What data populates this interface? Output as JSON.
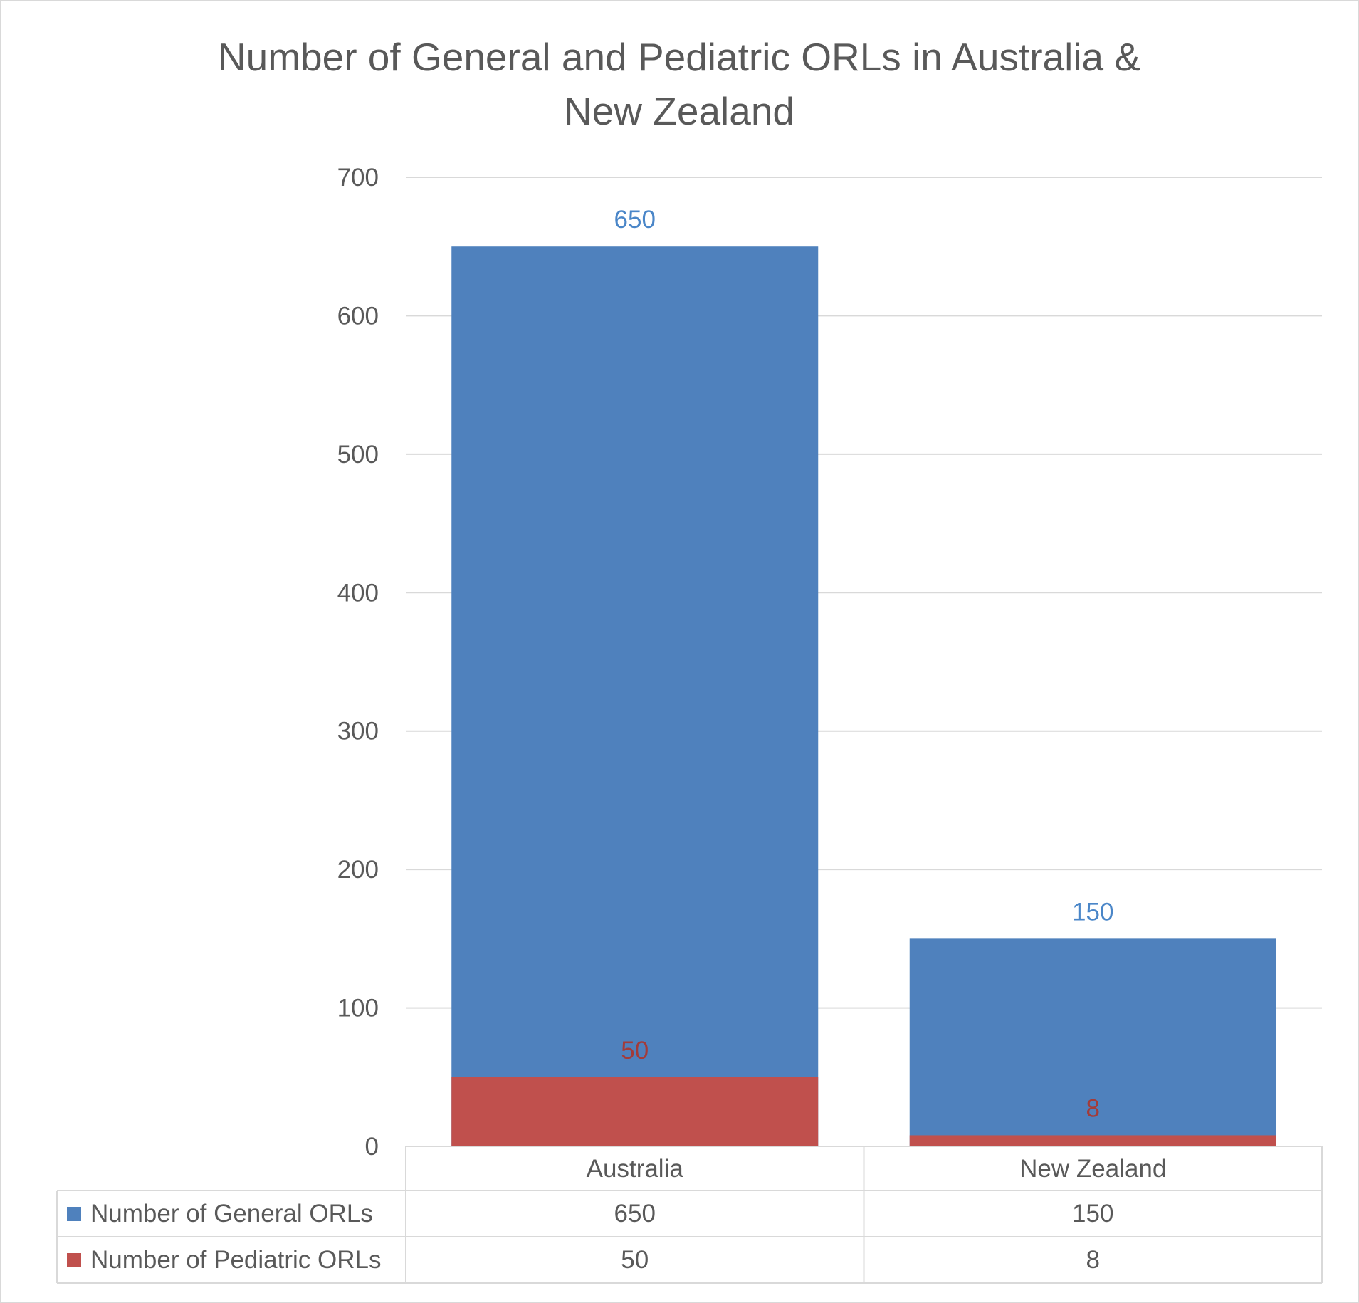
{
  "chart_data": {
    "type": "bar",
    "stacking": "overlap",
    "title": "Number of General and Pediatric ORLs in Australia & New Zealand",
    "title_lines": [
      "Number of General and Pediatric ORLs in Australia &",
      "New Zealand"
    ],
    "categories": [
      "Australia",
      "New Zealand"
    ],
    "series": [
      {
        "name": "Number of General ORLs",
        "values": [
          650,
          150
        ],
        "color": "#4F81BD",
        "label_color": "#4A86C8"
      },
      {
        "name": "Number of Pediatric ORLs",
        "values": [
          50,
          8
        ],
        "color": "#C0504D",
        "label_color": "#A33B39"
      }
    ],
    "data_labels": [
      [
        "650",
        "150"
      ],
      [
        "50",
        "8"
      ]
    ],
    "y_ticks": [
      "0",
      "100",
      "200",
      "300",
      "400",
      "500",
      "600",
      "700"
    ],
    "ylim": [
      0,
      700
    ],
    "grid": true,
    "legend": "data table below the chart",
    "data_table": {
      "header": [
        "Australia",
        "New Zealand"
      ],
      "rows": [
        {
          "label": "Number of General ORLs",
          "cells": [
            "650",
            "150"
          ]
        },
        {
          "label": "Number of Pediatric ORLs",
          "cells": [
            "50",
            "8"
          ]
        }
      ]
    },
    "xlabel": "",
    "ylabel": ""
  }
}
